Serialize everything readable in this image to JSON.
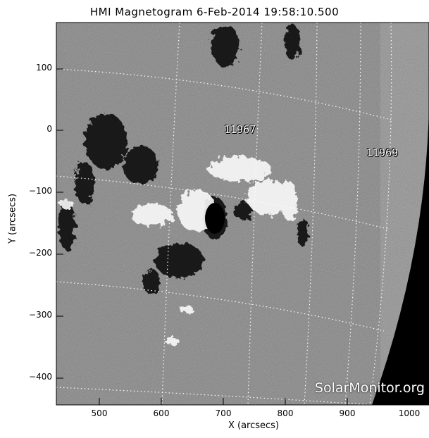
{
  "title": "HMI Magnetogram   6-Feb-2014  19:58:10.500",
  "xlabel": "X (arcsecs)",
  "ylabel": "Y (arcsecs)",
  "x_ticks": [
    "500",
    "600",
    "700",
    "800",
    "900",
    "1000"
  ],
  "y_ticks": [
    "100",
    "0",
    "−100",
    "−200",
    "−300",
    "−400"
  ],
  "active_regions": [
    {
      "label": "11967"
    },
    {
      "label": "11969"
    }
  ],
  "watermark": "SolarMonitor.org",
  "colors": {
    "background": "#7f7f7f",
    "space": "#000000",
    "grid": "#ffffff"
  }
}
